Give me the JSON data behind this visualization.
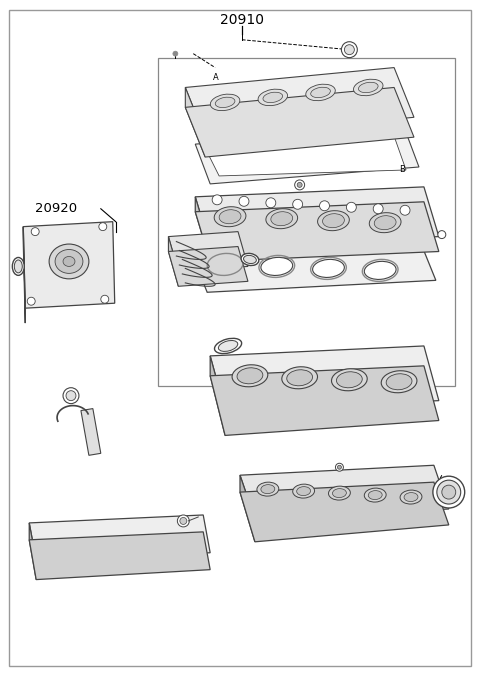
{
  "title": "20910",
  "subtitle": "20920",
  "bg_color": "#ffffff",
  "lc": "#444444",
  "lc2": "#666666",
  "fc_light": "#f5f5f5",
  "fc_mid": "#e8e8e8",
  "fc_dark": "#d5d5d5",
  "fig_width": 4.8,
  "fig_height": 6.76,
  "dpi": 100
}
